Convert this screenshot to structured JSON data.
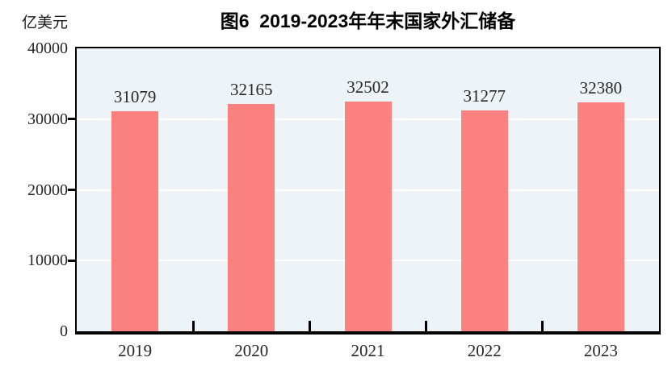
{
  "chart_data": {
    "type": "bar",
    "title": "图6  2019-2023年年末国家外汇储备",
    "unit_label": "亿美元",
    "categories": [
      "2019",
      "2020",
      "2021",
      "2022",
      "2023"
    ],
    "values": [
      31079,
      32165,
      32502,
      31277,
      32380
    ],
    "xlabel": "",
    "ylabel": "亿美元",
    "ylim": [
      0,
      40000
    ],
    "yticks": [
      0,
      10000,
      20000,
      30000,
      40000
    ],
    "grid": true,
    "gridline_values": [
      10000,
      20000,
      30000
    ],
    "legend_position": "none",
    "data_labels": true,
    "colors": {
      "bar_fill": "#FB8080",
      "plot_background": "#EDF3F7",
      "gridline": "#FFFFFF",
      "axis_frame": "#000000",
      "label_text": "#262626",
      "title_text": "#000000"
    }
  }
}
